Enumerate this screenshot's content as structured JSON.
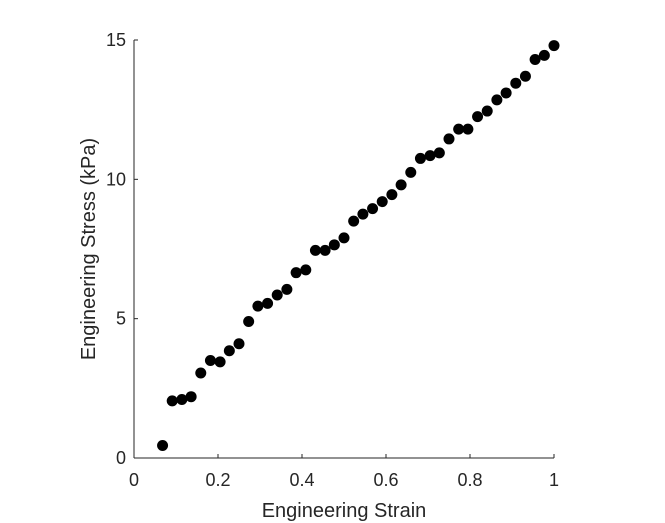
{
  "chart_data": {
    "type": "scatter",
    "title": "",
    "xlabel": "Engineering Strain",
    "ylabel": "Engineering Stress (kPa)",
    "xlim": [
      0,
      1
    ],
    "ylim": [
      0,
      15
    ],
    "grid": false,
    "legend": "none",
    "xticks": [
      0,
      0.2,
      0.4,
      0.6,
      0.8,
      1
    ],
    "xtick_labels": [
      "0",
      "0.2",
      "0.4",
      "0.6",
      "0.8",
      "1"
    ],
    "yticks": [
      0,
      5,
      10,
      15
    ],
    "ytick_labels": [
      "0",
      "5",
      "10",
      "15"
    ],
    "marker_color": "#000000",
    "series": [
      {
        "name": "data",
        "points": [
          [
            0.068,
            0.45
          ],
          [
            0.091,
            2.05
          ],
          [
            0.114,
            2.1
          ],
          [
            0.136,
            2.2
          ],
          [
            0.159,
            3.05
          ],
          [
            0.182,
            3.5
          ],
          [
            0.205,
            3.45
          ],
          [
            0.227,
            3.85
          ],
          [
            0.25,
            4.1
          ],
          [
            0.273,
            4.9
          ],
          [
            0.295,
            5.45
          ],
          [
            0.318,
            5.55
          ],
          [
            0.341,
            5.85
          ],
          [
            0.364,
            6.05
          ],
          [
            0.386,
            6.65
          ],
          [
            0.409,
            6.75
          ],
          [
            0.432,
            7.45
          ],
          [
            0.455,
            7.45
          ],
          [
            0.477,
            7.65
          ],
          [
            0.5,
            7.9
          ],
          [
            0.523,
            8.5
          ],
          [
            0.545,
            8.75
          ],
          [
            0.568,
            8.95
          ],
          [
            0.591,
            9.2
          ],
          [
            0.614,
            9.45
          ],
          [
            0.636,
            9.8
          ],
          [
            0.659,
            10.25
          ],
          [
            0.682,
            10.75
          ],
          [
            0.705,
            10.85
          ],
          [
            0.727,
            10.95
          ],
          [
            0.75,
            11.45
          ],
          [
            0.773,
            11.8
          ],
          [
            0.795,
            11.8
          ],
          [
            0.818,
            12.25
          ],
          [
            0.841,
            12.45
          ],
          [
            0.864,
            12.85
          ],
          [
            0.886,
            13.1
          ],
          [
            0.909,
            13.45
          ],
          [
            0.932,
            13.7
          ],
          [
            0.955,
            14.3
          ],
          [
            0.977,
            14.45
          ],
          [
            1.0,
            14.8
          ]
        ]
      }
    ]
  }
}
